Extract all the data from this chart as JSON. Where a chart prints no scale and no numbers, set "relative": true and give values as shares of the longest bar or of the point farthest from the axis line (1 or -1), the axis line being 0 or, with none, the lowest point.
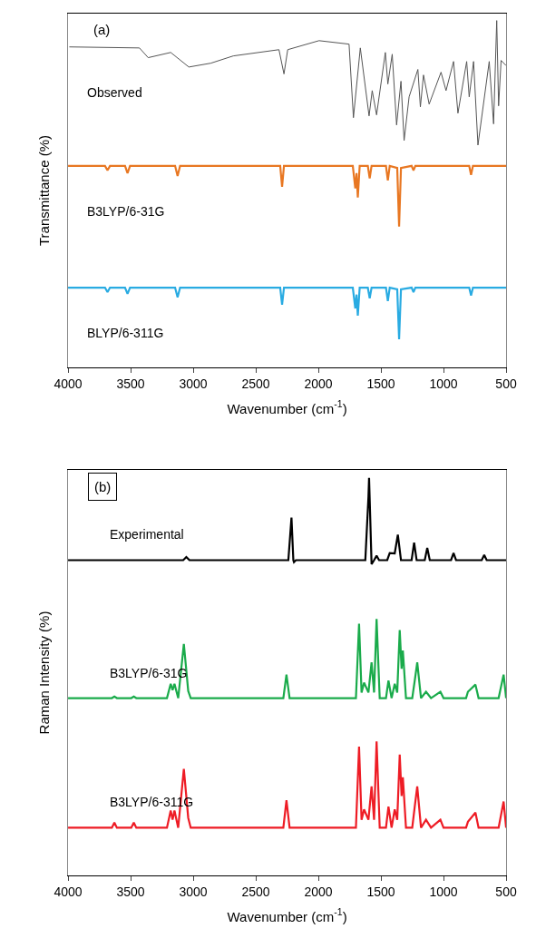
{
  "chart_data": [
    {
      "type": "line",
      "relative": true,
      "xlabel": "Wavenumber (cm$^{-1}$)",
      "ylabel": "Transmittance (%)",
      "xlim": [
        4000,
        500
      ],
      "xticks": [
        4000,
        3500,
        3000,
        2500,
        2000,
        1500,
        1000,
        500
      ],
      "tick_labels": "x",
      "legend": false,
      "annotations": [
        "(a)"
      ],
      "series": [
        {
          "name": "Observed",
          "color": "#555555",
          "x": [
            3990,
            3430,
            3360,
            3180,
            3035,
            2860,
            2680,
            2315,
            2275,
            2245,
            1995,
            1755,
            1720,
            1665,
            1595,
            1570,
            1535,
            1465,
            1445,
            1410,
            1375,
            1340,
            1315,
            1275,
            1205,
            1185,
            1160,
            1115,
            1020,
            980,
            920,
            885,
            815,
            795,
            760,
            725,
            635,
            600,
            575,
            560,
            540,
            500
          ],
          "values": [
            0.924,
            0.921,
            0.893,
            0.908,
            0.866,
            0.877,
            0.898,
            0.916,
            0.846,
            0.916,
            0.942,
            0.932,
            0.72,
            0.921,
            0.725,
            0.798,
            0.728,
            0.908,
            0.817,
            0.903,
            0.699,
            0.825,
            0.654,
            0.78,
            0.859,
            0.751,
            0.843,
            0.759,
            0.851,
            0.798,
            0.882,
            0.733,
            0.882,
            0.78,
            0.882,
            0.641,
            0.882,
            0.702,
            1.0,
            0.754,
            0.885,
            0.87
          ]
        },
        {
          "name": "B3LYP/6-31G",
          "color": "#e87722",
          "x": [
            4000,
            3705,
            3685,
            3665,
            3545,
            3525,
            3505,
            3145,
            3125,
            3105,
            2305,
            2290,
            2275,
            1725,
            1705,
            1695,
            1685,
            1670,
            1605,
            1590,
            1575,
            1460,
            1445,
            1430,
            1370,
            1355,
            1340,
            1255,
            1240,
            1225,
            795,
            780,
            765,
            500
          ],
          "values": [
            0.581,
            0.581,
            0.568,
            0.581,
            0.581,
            0.56,
            0.581,
            0.581,
            0.552,
            0.581,
            0.581,
            0.521,
            0.581,
            0.581,
            0.516,
            0.56,
            0.49,
            0.581,
            0.581,
            0.545,
            0.581,
            0.581,
            0.539,
            0.581,
            0.575,
            0.406,
            0.575,
            0.581,
            0.568,
            0.581,
            0.581,
            0.555,
            0.581,
            0.581
          ]
        },
        {
          "name": "BLYP/6-311G",
          "color": "#29abe2",
          "x": [
            4000,
            3705,
            3685,
            3665,
            3545,
            3525,
            3505,
            3145,
            3125,
            3105,
            2305,
            2290,
            2275,
            1725,
            1705,
            1695,
            1685,
            1670,
            1605,
            1590,
            1575,
            1460,
            1445,
            1430,
            1370,
            1355,
            1340,
            1255,
            1240,
            1225,
            795,
            780,
            765,
            500
          ],
          "values": [
            0.23,
            0.23,
            0.217,
            0.23,
            0.23,
            0.212,
            0.23,
            0.23,
            0.202,
            0.23,
            0.23,
            0.181,
            0.23,
            0.23,
            0.17,
            0.21,
            0.149,
            0.23,
            0.23,
            0.199,
            0.23,
            0.23,
            0.191,
            0.23,
            0.225,
            0.081,
            0.225,
            0.23,
            0.217,
            0.23,
            0.23,
            0.207,
            0.23,
            0.23
          ]
        }
      ]
    },
    {
      "type": "line",
      "relative": true,
      "xlabel": "Wavenumber (cm$^{-1}$)",
      "ylabel": "Raman Intensity (%)",
      "xlim": [
        4000,
        500
      ],
      "xticks": [
        4000,
        3500,
        3000,
        2500,
        2000,
        1500,
        1000,
        500
      ],
      "tick_labels": "x",
      "legend": false,
      "annotations": [
        "(b)"
      ],
      "series": [
        {
          "name": "Experimental",
          "color": "#000000",
          "x": [
            4000,
            3080,
            3055,
            3030,
            2240,
            2215,
            2200,
            2195,
            2180,
            1625,
            1600,
            1595,
            1575,
            1555,
            1535,
            1515,
            1450,
            1430,
            1390,
            1365,
            1340,
            1255,
            1235,
            1215,
            1150,
            1130,
            1110,
            940,
            920,
            900,
            695,
            675,
            655,
            500
          ],
          "values": [
            0.793,
            0.793,
            0.801,
            0.793,
            0.793,
            0.9,
            0.793,
            0.788,
            0.793,
            0.793,
            0.952,
            1.0,
            0.783,
            0.793,
            0.804,
            0.793,
            0.793,
            0.811,
            0.81,
            0.857,
            0.793,
            0.793,
            0.837,
            0.793,
            0.793,
            0.824,
            0.793,
            0.793,
            0.811,
            0.793,
            0.793,
            0.806,
            0.793,
            0.793
          ]
        },
        {
          "name": "B3LYP/6-31G",
          "color": "#1aab4b",
          "x": [
            4000,
            3650,
            3630,
            3610,
            3495,
            3475,
            3455,
            3210,
            3180,
            3165,
            3150,
            3120,
            3075,
            3040,
            3020,
            2280,
            2255,
            2230,
            1700,
            1675,
            1655,
            1635,
            1600,
            1575,
            1555,
            1535,
            1510,
            1460,
            1440,
            1415,
            1390,
            1370,
            1350,
            1335,
            1325,
            1300,
            1250,
            1230,
            1210,
            1180,
            1140,
            1100,
            1025,
            1000,
            820,
            805,
            745,
            720,
            560,
            520,
            500
          ],
          "values": [
            0.446,
            0.446,
            0.45,
            0.446,
            0.446,
            0.45,
            0.446,
            0.446,
            0.482,
            0.466,
            0.482,
            0.446,
            0.582,
            0.464,
            0.446,
            0.446,
            0.505,
            0.446,
            0.446,
            0.633,
            0.46,
            0.485,
            0.46,
            0.536,
            0.46,
            0.645,
            0.446,
            0.446,
            0.49,
            0.446,
            0.482,
            0.46,
            0.617,
            0.52,
            0.566,
            0.446,
            0.446,
            0.49,
            0.536,
            0.446,
            0.462,
            0.446,
            0.462,
            0.446,
            0.446,
            0.462,
            0.48,
            0.446,
            0.446,
            0.505,
            0.446
          ]
        },
        {
          "name": "B3LYP/6-311G",
          "color": "#ee1c25",
          "x": [
            4000,
            3650,
            3630,
            3610,
            3495,
            3475,
            3455,
            3210,
            3180,
            3165,
            3150,
            3120,
            3075,
            3040,
            3020,
            2280,
            2255,
            2230,
            1700,
            1675,
            1655,
            1635,
            1600,
            1575,
            1555,
            1535,
            1510,
            1460,
            1440,
            1415,
            1390,
            1370,
            1350,
            1335,
            1325,
            1300,
            1250,
            1230,
            1210,
            1180,
            1140,
            1100,
            1025,
            1000,
            820,
            805,
            745,
            720,
            560,
            520,
            500
          ],
          "values": [
            0.12,
            0.12,
            0.133,
            0.12,
            0.12,
            0.133,
            0.12,
            0.12,
            0.163,
            0.14,
            0.163,
            0.12,
            0.268,
            0.145,
            0.12,
            0.12,
            0.189,
            0.12,
            0.12,
            0.324,
            0.14,
            0.166,
            0.14,
            0.224,
            0.14,
            0.337,
            0.12,
            0.12,
            0.173,
            0.12,
            0.166,
            0.14,
            0.304,
            0.2,
            0.247,
            0.12,
            0.12,
            0.173,
            0.224,
            0.12,
            0.14,
            0.12,
            0.14,
            0.12,
            0.12,
            0.135,
            0.158,
            0.12,
            0.12,
            0.186,
            0.12
          ]
        }
      ]
    }
  ]
}
